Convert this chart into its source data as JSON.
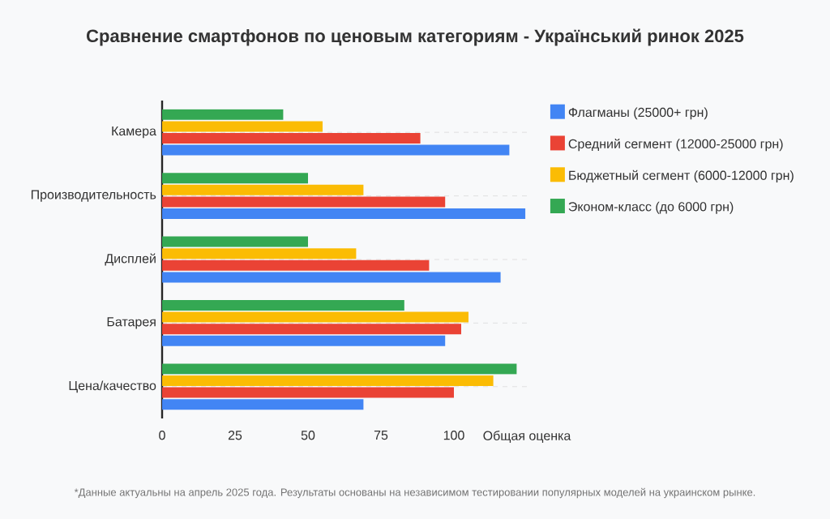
{
  "chart_data": {
    "type": "bar",
    "orientation": "horizontal",
    "title": "Сравнение смартфонов по ценовым категориям - Український ринок 2025",
    "xlabel": "Общая оценка",
    "categories": [
      "Камера",
      "Производительность",
      "Дисплей",
      "Батарея",
      "Цена/качество"
    ],
    "series": [
      {
        "name": "Флагманы (25000+ грн)",
        "color": "#4285f4",
        "values": [
          119,
          124.5,
          116,
          97,
          69
        ]
      },
      {
        "name": "Средний сегмент (12000-25000 грн)",
        "color": "#ea4335",
        "values": [
          88.5,
          97,
          91.5,
          102.5,
          100
        ]
      },
      {
        "name": "Бюджетный сегмент (6000-12000 грн)",
        "color": "#fbbc04",
        "values": [
          55,
          69,
          66.5,
          105,
          113.5
        ]
      },
      {
        "name": "Эконом-класс (до 6000 грн)",
        "color": "#34a853",
        "values": [
          41.5,
          50,
          50,
          83,
          121.5
        ]
      }
    ],
    "xlim": [
      0,
      125
    ],
    "xticks": [
      0,
      25,
      50,
      75,
      100
    ],
    "grid": "y",
    "legend": "right",
    "annotations": [
      "*Данные актуальны на апрель 2025 года. Результаты основаны на независимом тестировании популярных моделей на украинском рынке."
    ]
  }
}
